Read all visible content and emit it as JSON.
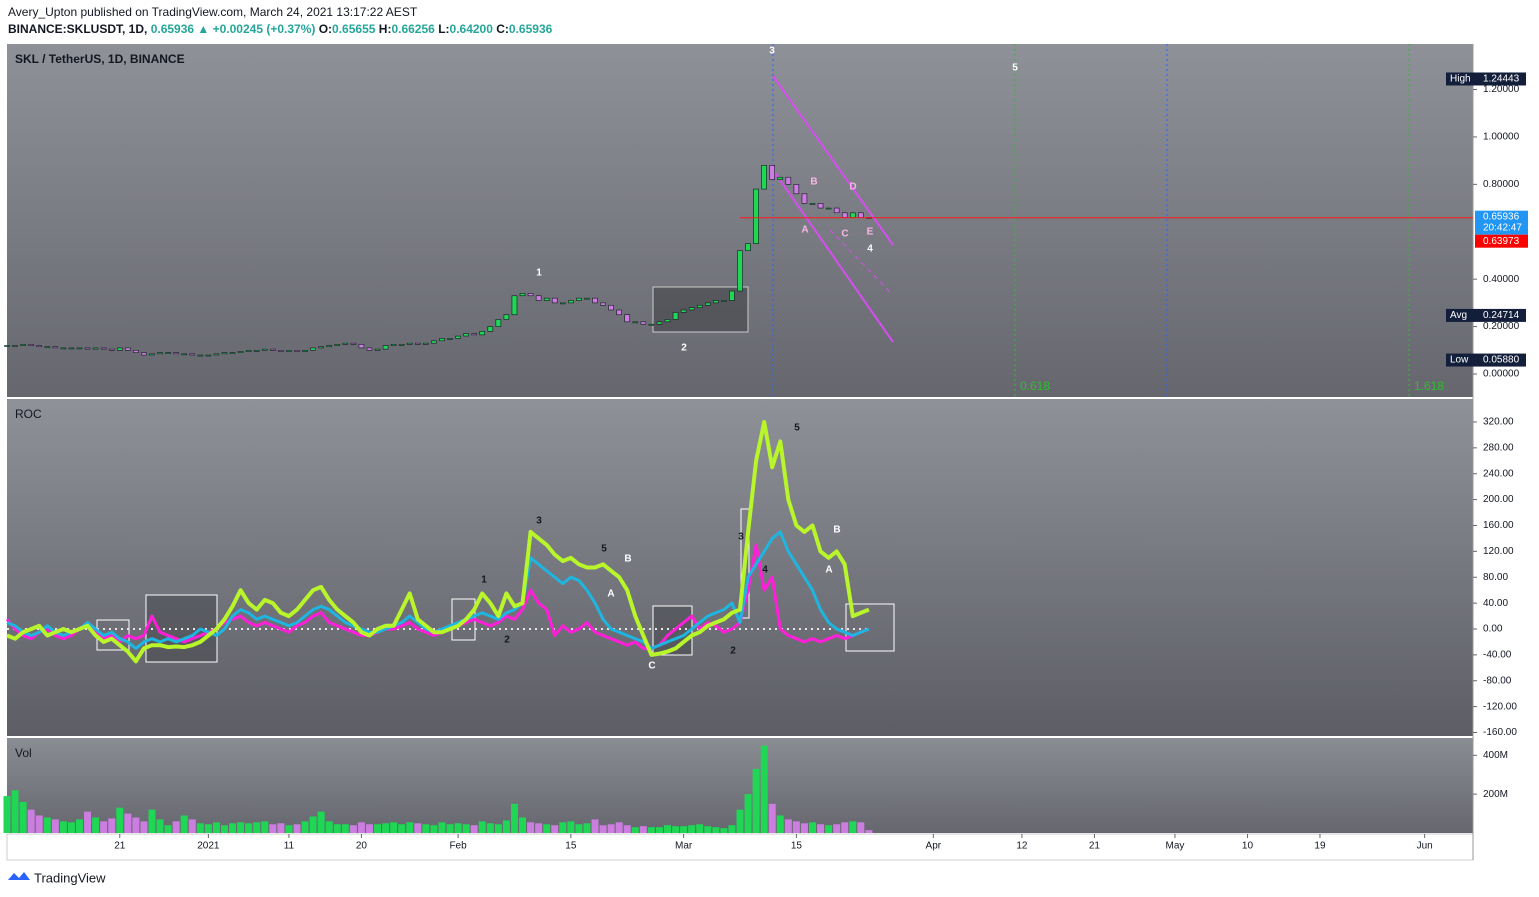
{
  "header": {
    "published": "Avery_Upton published on TradingView.com, March 24, 2021 13:17:22 AEST",
    "quote": [
      "BINANCE:SKLUSDT, 1D,",
      "0.65936 ▲ +0.00245 (+0.37%)",
      "O:",
      "0.65655",
      "H:",
      "0.66256",
      "L:",
      "0.64200",
      "C:",
      "0.65936"
    ]
  },
  "brand": "TradingView",
  "chart_data": [
    {
      "type": "candlestick",
      "title": "SKL / TetherUS, 1D, BINANCE",
      "up_color": "#1fd655",
      "down_color": "#cc7de0",
      "xlim": [
        0,
        182
      ],
      "ylim": [
        -0.097,
        1.392
      ],
      "yticks": [
        {
          "value": 0,
          "label": "0.00000"
        },
        {
          "value": 0.2,
          "label": "0.20000"
        },
        {
          "value": 0.4,
          "label": "0.40000"
        },
        {
          "value": 0.8,
          "label": "0.80000"
        },
        {
          "value": 1,
          "label": "1.00000"
        },
        {
          "value": 1.2,
          "label": "1.20000"
        }
      ],
      "close": [
        0.12,
        0.12,
        0.125,
        0.12,
        0.115,
        0.115,
        0.11,
        0.11,
        0.11,
        0.11,
        0.105,
        0.11,
        0.105,
        0.1,
        0.11,
        0.1,
        0.09,
        0.08,
        0.085,
        0.09,
        0.09,
        0.085,
        0.085,
        0.08,
        0.08,
        0.08,
        0.085,
        0.09,
        0.09,
        0.095,
        0.1,
        0.1,
        0.105,
        0.1,
        0.095,
        0.1,
        0.095,
        0.1,
        0.11,
        0.115,
        0.12,
        0.125,
        0.13,
        0.125,
        0.11,
        0.1,
        0.105,
        0.12,
        0.125,
        0.125,
        0.13,
        0.125,
        0.13,
        0.14,
        0.15,
        0.15,
        0.16,
        0.17,
        0.165,
        0.18,
        0.2,
        0.23,
        0.25,
        0.33,
        0.34,
        0.33,
        0.31,
        0.32,
        0.3,
        0.3,
        0.31,
        0.32,
        0.32,
        0.3,
        0.29,
        0.27,
        0.25,
        0.22,
        0.22,
        0.21,
        0.21,
        0.22,
        0.23,
        0.26,
        0.27,
        0.28,
        0.29,
        0.3,
        0.31,
        0.31,
        0.35,
        0.52,
        0.55,
        0.78,
        0.88,
        0.82,
        0.83,
        0.8,
        0.76,
        0.72,
        0.72,
        0.7,
        0.7,
        0.68,
        0.66,
        0.68,
        0.66,
        0.65936
      ],
      "last_price": {
        "value": 0.65936,
        "label": "0.65936",
        "countdown": "20:42:47"
      },
      "price_labels": [
        {
          "name": "High",
          "value": 1.24443,
          "label": "1.24443"
        },
        {
          "name": "Avg",
          "value": 0.24714,
          "label": "0.24714"
        },
        {
          "name": "Low",
          "value": 0.0588,
          "label": "0.05880"
        }
      ],
      "prev_label": {
        "value": 0.63973,
        "label": "0.63973"
      },
      "annotations": [
        "1",
        "2",
        "3",
        "5",
        "A",
        "B",
        "C",
        "D",
        "E",
        "4",
        "0.618",
        "1.618"
      ]
    },
    {
      "type": "line",
      "title": "ROC",
      "ylim": [
        -165.4,
        355.5
      ],
      "yticks": [
        {
          "value": -160,
          "label": "-160.00"
        },
        {
          "value": -120,
          "label": "-120.00"
        },
        {
          "value": -80,
          "label": "-80.00"
        },
        {
          "value": -40,
          "label": "-40.00"
        },
        {
          "value": 0,
          "label": "0.00"
        },
        {
          "value": 40,
          "label": "40.00"
        },
        {
          "value": 80,
          "label": "80.00"
        },
        {
          "value": 120,
          "label": "120.00"
        },
        {
          "value": 160,
          "label": "160.00"
        },
        {
          "value": 200,
          "label": "200.00"
        },
        {
          "value": 240,
          "label": "240.00"
        },
        {
          "value": 280,
          "label": "280.00"
        },
        {
          "value": 320,
          "label": "320.00"
        }
      ],
      "series": [
        {
          "color": "#ff1fd8",
          "values": [
            15,
            0,
            -10,
            -15,
            -5,
            0,
            -10,
            -15,
            -10,
            0,
            10,
            -5,
            -15,
            -10,
            -20,
            -10,
            -15,
            -10,
            20,
            -5,
            -10,
            -15,
            -20,
            -15,
            -10,
            -5,
            0,
            10,
            15,
            20,
            10,
            5,
            10,
            5,
            0,
            -5,
            5,
            10,
            20,
            25,
            10,
            5,
            0,
            -5,
            -10,
            -10,
            -5,
            0,
            0,
            5,
            10,
            0,
            -5,
            -10,
            -5,
            0,
            5,
            10,
            15,
            10,
            5,
            10,
            20,
            15,
            30,
            60,
            40,
            30,
            -10,
            5,
            -5,
            0,
            10,
            -5,
            -10,
            -15,
            -20,
            -25,
            -20,
            -30,
            -30,
            -25,
            -10,
            0,
            10,
            20,
            0,
            10,
            5,
            -5,
            0,
            10,
            60,
            130,
            60,
            80,
            0,
            -10,
            -15,
            -20,
            -15,
            -20,
            -15,
            -10,
            -15,
            -10,
            -5,
            0
          ]
        },
        {
          "color": "#1eb6e0",
          "values": [
            10,
            5,
            -5,
            -10,
            -5,
            5,
            -5,
            -10,
            -5,
            0,
            10,
            0,
            -10,
            -5,
            -15,
            -20,
            -30,
            -20,
            -15,
            -20,
            -15,
            -20,
            -15,
            -10,
            0,
            -5,
            -10,
            0,
            20,
            30,
            25,
            15,
            20,
            15,
            10,
            5,
            10,
            20,
            30,
            35,
            30,
            20,
            10,
            5,
            0,
            -5,
            -5,
            0,
            5,
            10,
            20,
            10,
            0,
            -5,
            0,
            5,
            10,
            15,
            20,
            25,
            20,
            15,
            25,
            30,
            40,
            110,
            100,
            90,
            80,
            70,
            80,
            75,
            60,
            40,
            15,
            0,
            -5,
            -10,
            -15,
            -20,
            -30,
            -25,
            -20,
            -15,
            -10,
            0,
            10,
            20,
            25,
            30,
            40,
            10,
            80,
            100,
            120,
            140,
            150,
            120,
            100,
            80,
            60,
            30,
            10,
            0,
            -5,
            -10,
            -5,
            0
          ]
        },
        {
          "color": "#b8f52a",
          "values": [
            -10,
            -15,
            -5,
            0,
            5,
            -10,
            -5,
            0,
            -5,
            0,
            5,
            -10,
            -20,
            -15,
            -25,
            -35,
            -50,
            -30,
            -25,
            -25,
            -28,
            -27,
            -28,
            -25,
            -20,
            -10,
            0,
            15,
            35,
            60,
            40,
            30,
            45,
            40,
            25,
            20,
            30,
            45,
            60,
            65,
            45,
            30,
            20,
            10,
            -5,
            -10,
            0,
            5,
            5,
            30,
            55,
            15,
            5,
            -5,
            -5,
            0,
            5,
            15,
            30,
            55,
            40,
            20,
            55,
            35,
            40,
            150,
            140,
            130,
            115,
            105,
            110,
            100,
            95,
            95,
            100,
            90,
            80,
            60,
            20,
            -10,
            -40,
            -38,
            -35,
            -30,
            -20,
            -10,
            -5,
            5,
            10,
            15,
            25,
            30,
            150,
            260,
            320,
            250,
            290,
            200,
            160,
            150,
            160,
            120,
            110,
            120,
            100,
            20,
            25,
            30
          ]
        }
      ],
      "annotations": [
        "3",
        "5",
        "B",
        "A",
        "1",
        "2",
        "C",
        "2",
        "3",
        "4",
        "5",
        "B",
        "A"
      ]
    },
    {
      "type": "bar",
      "title": "Vol",
      "ylim": [
        0,
        489
      ],
      "yticks": [
        {
          "value": 200,
          "label": "200M"
        },
        {
          "value": 400,
          "label": "400M"
        }
      ],
      "values": [
        190,
        220,
        160,
        120,
        90,
        80,
        70,
        60,
        55,
        70,
        110,
        80,
        60,
        75,
        130,
        100,
        80,
        60,
        120,
        70,
        40,
        60,
        90,
        70,
        50,
        45,
        55,
        40,
        50,
        55,
        50,
        55,
        60,
        45,
        50,
        40,
        45,
        60,
        85,
        110,
        60,
        45,
        45,
        40,
        55,
        45,
        45,
        50,
        55,
        45,
        55,
        50,
        45,
        40,
        55,
        45,
        50,
        45,
        40,
        60,
        50,
        45,
        65,
        150,
        80,
        55,
        50,
        45,
        40,
        55,
        60,
        45,
        50,
        70,
        40,
        45,
        55,
        40,
        30,
        35,
        30,
        30,
        40,
        35,
        35,
        40,
        45,
        35,
        30,
        25,
        40,
        120,
        200,
        330,
        450,
        150,
        90,
        70,
        60,
        50,
        55,
        45,
        40,
        45,
        55,
        60,
        55,
        15
      ],
      "xticks": [
        {
          "value": 14,
          "label": "21"
        },
        {
          "value": 25,
          "label": "2021"
        },
        {
          "value": 35,
          "label": "11"
        },
        {
          "value": 44,
          "label": "20"
        },
        {
          "value": 56,
          "label": "Feb"
        },
        {
          "value": 70,
          "label": "15"
        },
        {
          "value": 84,
          "label": "Mar"
        },
        {
          "value": 98,
          "label": "15"
        },
        {
          "value": 115,
          "label": "Apr"
        },
        {
          "value": 126,
          "label": "12"
        },
        {
          "value": 135,
          "label": "21"
        },
        {
          "value": 145,
          "label": "May"
        },
        {
          "value": 154,
          "label": "10"
        },
        {
          "value": 163,
          "label": "19"
        },
        {
          "value": 176,
          "label": "Jun"
        }
      ]
    }
  ]
}
